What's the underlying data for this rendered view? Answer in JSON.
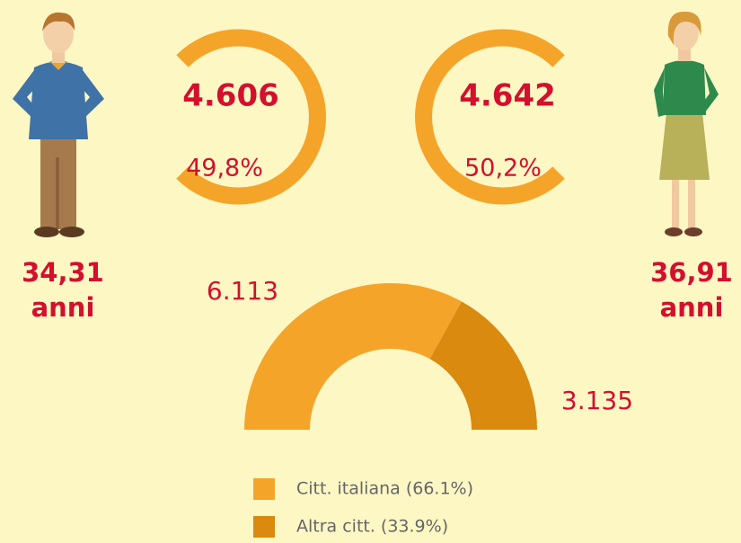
{
  "male": {
    "count": "4.606",
    "share": "49,8%",
    "age": "34,31",
    "unit": "anni"
  },
  "female": {
    "count": "4.642",
    "share": "50,2%",
    "age": "36,91",
    "unit": "anni"
  },
  "chart_data": {
    "type": "pie",
    "shape": "half-donut",
    "categories": [
      "Citt. italiana (66.1%)",
      "Altra citt. (33.9%)"
    ],
    "values": [
      6113,
      3135
    ],
    "value_labels": [
      "6.113",
      "3.135"
    ],
    "colors": [
      "#f5a42a",
      "#d98a0f"
    ]
  }
}
